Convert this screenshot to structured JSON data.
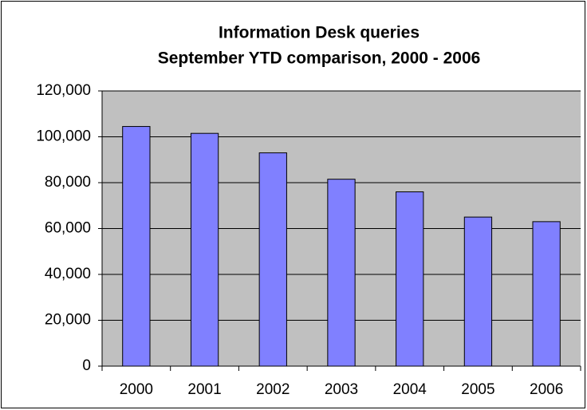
{
  "chart_data": {
    "type": "bar",
    "title": "Information Desk queries",
    "subtitle": "September YTD comparison, 2000 - 2006",
    "categories": [
      "2000",
      "2001",
      "2002",
      "2003",
      "2004",
      "2005",
      "2006"
    ],
    "values": [
      104500,
      101500,
      93000,
      81500,
      76000,
      65000,
      63000
    ],
    "color": "#8080ff",
    "ylim": [
      0,
      120000
    ],
    "yticks": [
      0,
      {
        "value": 20000,
        "label": "20,000"
      },
      {
        "value": 40000,
        "label": "40,000"
      },
      {
        "value": 60000,
        "label": "60,000"
      },
      {
        "value": 80000,
        "label": "80,000"
      },
      {
        "value": 100000,
        "label": "100,000"
      },
      {
        "value": 120000,
        "label": "120,000"
      }
    ],
    "grid": true
  }
}
